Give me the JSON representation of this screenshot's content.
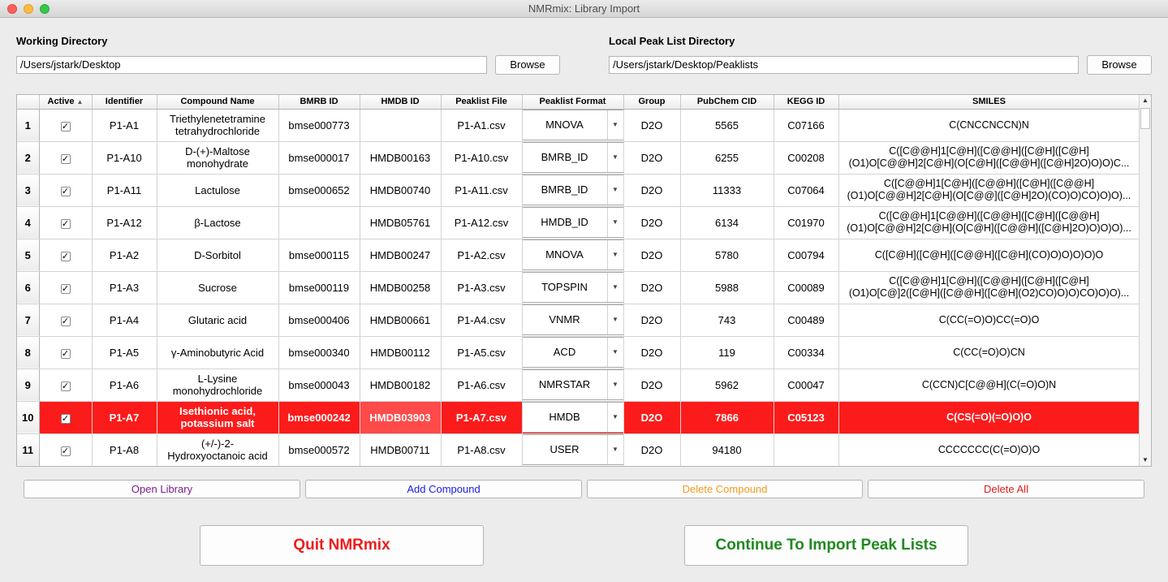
{
  "window": {
    "title": "NMRmix: Library Import"
  },
  "working_dir": {
    "label": "Working Directory",
    "value": "/Users/jstark/Desktop",
    "browse_label": "Browse"
  },
  "peak_dir": {
    "label": "Local Peak List Directory",
    "value": "/Users/jstark/Desktop/Peaklists",
    "browse_label": "Browse"
  },
  "table": {
    "columns": [
      "Active",
      "Identifier",
      "Compound Name",
      "BMRB ID",
      "HMDB ID",
      "Peaklist File",
      "Peaklist Format",
      "Group",
      "PubChem CID",
      "KEGG ID",
      "SMILES"
    ],
    "sorted_column_arrow": "▲",
    "check_mark": "✓",
    "dropdown_arrow": "▼",
    "selected_row": 9,
    "rows": [
      {
        "num": "1",
        "id": "P1-A1",
        "name": [
          "Triethylenetetramine",
          "tetrahydrochloride"
        ],
        "bmrb": "bmse000773",
        "hmdb": "",
        "file": "P1-A1.csv",
        "format": "MNOVA",
        "group": "D2O",
        "pubchem": "5565",
        "kegg": "C07166",
        "smiles": [
          "C(CNCCNCCN)N"
        ]
      },
      {
        "num": "2",
        "id": "P1-A10",
        "name": [
          "D-(+)-Maltose",
          "monohydrate"
        ],
        "bmrb": "bmse000017",
        "hmdb": "HMDB00163",
        "file": "P1-A10.csv",
        "format": "BMRB_ID",
        "group": "D2O",
        "pubchem": "6255",
        "kegg": "C00208",
        "smiles": [
          "C([C@@H]1[C@H]([C@@H]([C@H]([C@H]",
          "(O1)O[C@@H]2[C@H](O[C@H]([C@@H]([C@H]2O)O)O)C..."
        ]
      },
      {
        "num": "3",
        "id": "P1-A11",
        "name": [
          "Lactulose"
        ],
        "bmrb": "bmse000652",
        "hmdb": "HMDB00740",
        "file": "P1-A11.csv",
        "format": "BMRB_ID",
        "group": "D2O",
        "pubchem": "11333",
        "kegg": "C07064",
        "smiles": [
          "C([C@@H]1[C@H]([C@@H]([C@H]([C@@H]",
          "(O1)O[C@@H]2[C@H](O[C@@]([C@H]2O)(CO)O)CO)O)O)..."
        ]
      },
      {
        "num": "4",
        "id": "P1-A12",
        "name": [
          "β-Lactose"
        ],
        "bmrb": "",
        "hmdb": "HMDB05761",
        "file": "P1-A12.csv",
        "format": "HMDB_ID",
        "group": "D2O",
        "pubchem": "6134",
        "kegg": "C01970",
        "smiles": [
          "C([C@@H]1[C@@H]([C@@H]([C@H]([C@@H]",
          "(O1)O[C@@H]2[C@H](O[C@H]([C@@H]([C@H]2O)O)O)O)..."
        ]
      },
      {
        "num": "5",
        "id": "P1-A2",
        "name": [
          "D-Sorbitol"
        ],
        "bmrb": "bmse000115",
        "hmdb": "HMDB00247",
        "file": "P1-A2.csv",
        "format": "MNOVA",
        "group": "D2O",
        "pubchem": "5780",
        "kegg": "C00794",
        "smiles": [
          "C([C@H]([C@H]([C@@H]([C@H](CO)O)O)O)O)O"
        ]
      },
      {
        "num": "6",
        "id": "P1-A3",
        "name": [
          "Sucrose"
        ],
        "bmrb": "bmse000119",
        "hmdb": "HMDB00258",
        "file": "P1-A3.csv",
        "format": "TOPSPIN",
        "group": "D2O",
        "pubchem": "5988",
        "kegg": "C00089",
        "smiles": [
          "C([C@@H]1[C@H]([C@@H]([C@H]([C@H]",
          "(O1)O[C@]2([C@H]([C@@H]([C@H](O2)CO)O)O)CO)O)O)..."
        ]
      },
      {
        "num": "7",
        "id": "P1-A4",
        "name": [
          "Glutaric acid"
        ],
        "bmrb": "bmse000406",
        "hmdb": "HMDB00661",
        "file": "P1-A4.csv",
        "format": "VNMR",
        "group": "D2O",
        "pubchem": "743",
        "kegg": "C00489",
        "smiles": [
          "C(CC(=O)O)CC(=O)O"
        ]
      },
      {
        "num": "8",
        "id": "P1-A5",
        "name": [
          "γ-Aminobutyric Acid"
        ],
        "bmrb": "bmse000340",
        "hmdb": "HMDB00112",
        "file": "P1-A5.csv",
        "format": "ACD",
        "group": "D2O",
        "pubchem": "119",
        "kegg": "C00334",
        "smiles": [
          "C(CC(=O)O)CN"
        ]
      },
      {
        "num": "9",
        "id": "P1-A6",
        "name": [
          "L-Lysine",
          "monohydrochloride"
        ],
        "bmrb": "bmse000043",
        "hmdb": "HMDB00182",
        "file": "P1-A6.csv",
        "format": "NMRSTAR",
        "group": "D2O",
        "pubchem": "5962",
        "kegg": "C00047",
        "smiles": [
          "C(CCN)C[C@@H](C(=O)O)N"
        ]
      },
      {
        "num": "10",
        "id": "P1-A7",
        "name": [
          "Isethionic acid,",
          "potassium salt"
        ],
        "bmrb": "bmse000242",
        "hmdb": "HMDB03903",
        "file": "P1-A7.csv",
        "format": "HMDB",
        "group": "D2O",
        "pubchem": "7866",
        "kegg": "C05123",
        "smiles": [
          "C(CS(=O)(=O)O)O"
        ]
      },
      {
        "num": "11",
        "id": "P1-A8",
        "name": [
          "(+/-)-2-",
          "Hydroxyoctanoic acid"
        ],
        "bmrb": "bmse000572",
        "hmdb": "HMDB00711",
        "file": "P1-A8.csv",
        "format": "USER",
        "group": "D2O",
        "pubchem": "94180",
        "kegg": "",
        "smiles": [
          "CCCCCCC(C(=O)O)O"
        ]
      }
    ]
  },
  "actions": {
    "open_library": {
      "label": "Open Library",
      "color": "#7a1f8a"
    },
    "add_compound": {
      "label": "Add Compound",
      "color": "#1a1ae6"
    },
    "delete_compound": {
      "label": "Delete Compound",
      "color": "#f39a1f"
    },
    "delete_all": {
      "label": "Delete All",
      "color": "#e01b1b"
    }
  },
  "bottom": {
    "quit": {
      "label": "Quit NMRmix",
      "color": "#ee1c1c"
    },
    "continue": {
      "label": "Continue To Import Peak Lists",
      "color": "#1f8a1f"
    }
  }
}
